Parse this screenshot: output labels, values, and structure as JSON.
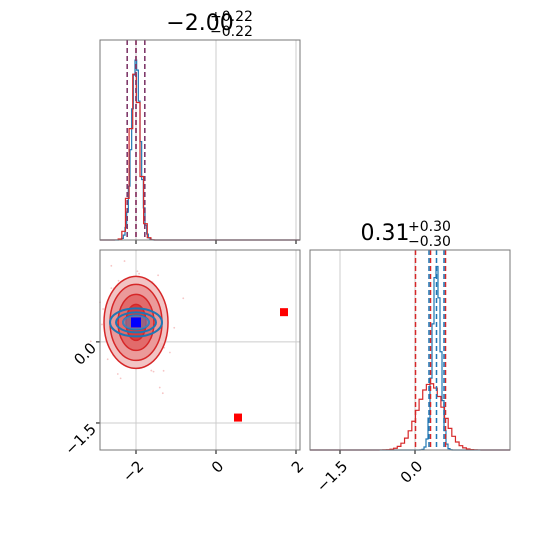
{
  "chart_data": {
    "type": "corner",
    "colors": {
      "red": "#d62728",
      "blue": "#1f77b4",
      "grid": "#cccccc",
      "marker_blue": "#0000ff",
      "marker_red": "#ff0000"
    },
    "params": [
      {
        "title": {
          "main": "−2.00",
          "sup": "+0.22",
          "sub": "−0.22"
        },
        "xlim": [
          -2.9,
          2.1
        ],
        "xticks": [
          {
            "v": -2,
            "label": "−2"
          },
          {
            "v": 0,
            "label": "0"
          },
          {
            "v": 2,
            "label": "2"
          }
        ],
        "quantiles_red": [
          -2.22,
          -2.0,
          -1.78
        ],
        "quantiles_blue": [
          -2.22,
          -2.0,
          -1.78
        ],
        "hist_mean": -2.0,
        "hist_sd": 0.11
      },
      {
        "title": {
          "main": "0.31",
          "sup": "+0.30",
          "sub": "−0.30"
        },
        "xlim": [
          -2.1,
          1.9
        ],
        "xticks": [
          {
            "v": -1.5,
            "label": "−1.5"
          },
          {
            "v": 0,
            "label": "0.0"
          }
        ],
        "quantiles_red": [
          0.01,
          0.31,
          0.61
        ],
        "quantiles_blue": [
          0.28,
          0.43,
          0.58
        ],
        "hist_blue_mean": 0.43,
        "hist_blue_sd": 0.08,
        "hist_red_mean": 0.31,
        "hist_red_sd": 0.26
      }
    ],
    "joint": {
      "ylim": [
        -2.0,
        1.7
      ],
      "yticks": [
        {
          "v": 0,
          "label": "0.0"
        },
        {
          "v": -1.5,
          "label": "−1.5"
        }
      ],
      "center": [
        -2.0,
        0.36
      ],
      "red_markers": [
        [
          1.7,
          0.55
        ],
        [
          0.55,
          -1.4
        ]
      ]
    }
  }
}
